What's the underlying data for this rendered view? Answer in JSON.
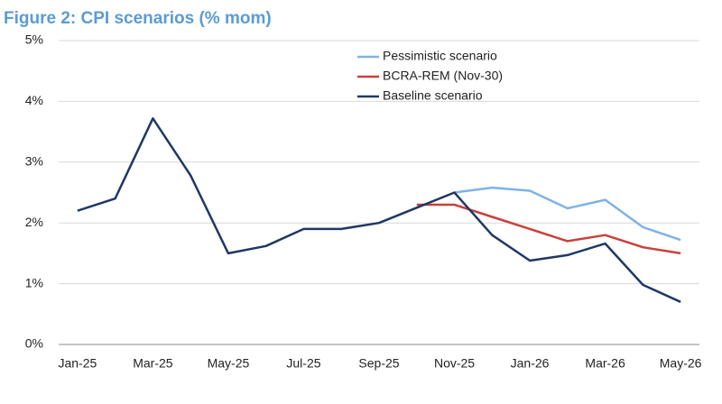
{
  "chart_data": {
    "type": "line",
    "title": "Figure 2: CPI scenarios (% mom)",
    "categories": [
      "Jan-25",
      null,
      "Mar-25",
      null,
      "May-25",
      null,
      "Jul-25",
      null,
      "Sep-25",
      null,
      "Nov-25",
      null,
      "Jan-26",
      null,
      "Mar-26",
      null,
      "May-26"
    ],
    "series": [
      {
        "name": "Pessimistic scenario",
        "color": "#7fb2e5",
        "values": [
          null,
          null,
          null,
          null,
          null,
          null,
          null,
          null,
          null,
          null,
          2.5,
          2.58,
          2.53,
          2.24,
          2.38,
          1.93,
          1.72
        ]
      },
      {
        "name": "BCRA-REM (Nov-30)",
        "color": "#c8413a",
        "values": [
          null,
          null,
          null,
          null,
          null,
          null,
          null,
          null,
          null,
          2.3,
          2.3,
          2.1,
          1.9,
          1.7,
          1.8,
          1.6,
          1.5
        ]
      },
      {
        "name": "Baseline scenario",
        "color": "#1f3864",
        "values": [
          2.2,
          2.4,
          3.72,
          2.78,
          1.5,
          1.62,
          1.9,
          1.9,
          2.0,
          2.25,
          2.5,
          1.8,
          1.38,
          1.47,
          1.66,
          0.98,
          0.7
        ]
      }
    ],
    "ylim": [
      0,
      5
    ],
    "yticks": [
      {
        "value": 0,
        "label": "0%"
      },
      {
        "value": 1,
        "label": "1%"
      },
      {
        "value": 2,
        "label": "2%"
      },
      {
        "value": 3,
        "label": "3%"
      },
      {
        "value": 4,
        "label": "4%"
      },
      {
        "value": 5,
        "label": "5%"
      }
    ],
    "grid": true,
    "legend": "top-right"
  }
}
